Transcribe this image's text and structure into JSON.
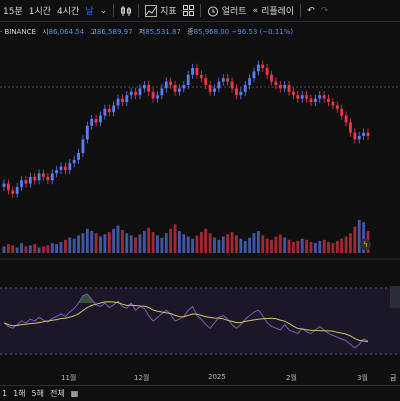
{
  "toolbar": {
    "interval_15m": "15분",
    "interval_1h": "1시간",
    "interval_4h": "4시간",
    "interval_day": "날",
    "indicators": "지표",
    "alerts": "얼러트",
    "replay": "리플레이"
  },
  "legend": {
    "symbol": "· BINANCE",
    "open_label": "시",
    "open_value": "86,064.54",
    "high_label": "고",
    "high_value": "86,589.97",
    "low_label": "저",
    "low_value": "85,531.87",
    "close_label": "종",
    "close_value": "85,968.00",
    "change": "−96.53 (−0.11%)"
  },
  "time_axis": {
    "labels": [
      "11월",
      "12월",
      "2025",
      "2월",
      "3월"
    ]
  },
  "price_axis_partial": "금",
  "bottom_bar": {
    "range_1d": "1",
    "range_1y": "1해",
    "range_5y": "5해",
    "range_all": "전체"
  },
  "colors": {
    "up": "#5b7cf7",
    "down": "#f23645",
    "rsi_line": "#7e57c2",
    "rsi_ma": "#d4c36a",
    "background": "#0f0f0f"
  },
  "chart_data": {
    "type": "candlestick",
    "closes": [
      71,
      69,
      68,
      70,
      72,
      71,
      73,
      72,
      74,
      73,
      72,
      74,
      75,
      76,
      75,
      77,
      78,
      80,
      84,
      88,
      90,
      89,
      91,
      93,
      92,
      94,
      96,
      95,
      97,
      98,
      97,
      99,
      100,
      98,
      96,
      97,
      99,
      101,
      100,
      98,
      99,
      100,
      103,
      105,
      103,
      102,
      100,
      98,
      99,
      101,
      102,
      101,
      99,
      97,
      98,
      100,
      102,
      104,
      106,
      105,
      103,
      101,
      100,
      99,
      100,
      98,
      97,
      96,
      97,
      96,
      95,
      96,
      97,
      96,
      95,
      94,
      93,
      91,
      89,
      86,
      84,
      85,
      86,
      85
    ],
    "volumes": [
      6,
      8,
      7,
      5,
      9,
      6,
      7,
      8,
      5,
      6,
      7,
      9,
      8,
      10,
      12,
      14,
      13,
      16,
      18,
      22,
      20,
      18,
      15,
      17,
      19,
      22,
      25,
      21,
      18,
      16,
      14,
      17,
      20,
      23,
      19,
      16,
      14,
      18,
      22,
      26,
      20,
      17,
      15,
      13,
      16,
      19,
      22,
      18,
      14,
      12,
      15,
      17,
      19,
      16,
      13,
      11,
      14,
      18,
      20,
      16,
      13,
      12,
      15,
      17,
      14,
      12,
      10,
      11,
      13,
      12,
      10,
      9,
      11,
      12,
      10,
      9,
      11,
      13,
      15,
      18,
      24,
      30,
      28,
      20
    ],
    "rsi": [
      48,
      44,
      42,
      46,
      50,
      48,
      52,
      50,
      54,
      51,
      49,
      53,
      55,
      58,
      55,
      60,
      64,
      70,
      78,
      80,
      74,
      68,
      66,
      70,
      65,
      68,
      72,
      66,
      64,
      70,
      62,
      66,
      64,
      56,
      50,
      54,
      58,
      62,
      57,
      50,
      52,
      55,
      62,
      66,
      56,
      52,
      46,
      42,
      48,
      54,
      56,
      52,
      46,
      42,
      46,
      52,
      56,
      60,
      62,
      56,
      48,
      44,
      42,
      40,
      46,
      40,
      38,
      36,
      42,
      38,
      36,
      40,
      44,
      40,
      36,
      34,
      32,
      30,
      28,
      24,
      20,
      24,
      30,
      28
    ]
  }
}
